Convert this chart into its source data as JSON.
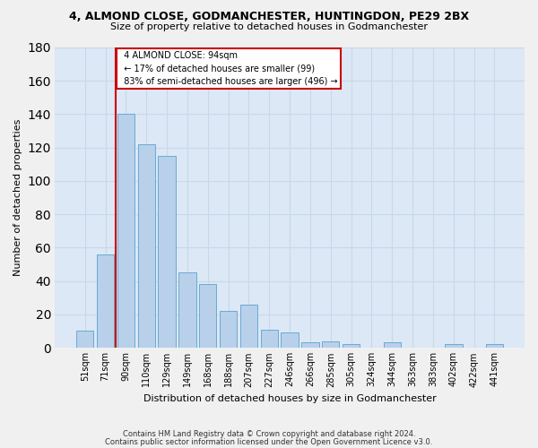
{
  "title1": "4, ALMOND CLOSE, GODMANCHESTER, HUNTINGDON, PE29 2BX",
  "title2": "Size of property relative to detached houses in Godmanchester",
  "xlabel": "Distribution of detached houses by size in Godmanchester",
  "ylabel": "Number of detached properties",
  "bar_labels": [
    "51sqm",
    "71sqm",
    "90sqm",
    "110sqm",
    "129sqm",
    "149sqm",
    "168sqm",
    "188sqm",
    "207sqm",
    "227sqm",
    "246sqm",
    "266sqm",
    "285sqm",
    "305sqm",
    "324sqm",
    "344sqm",
    "363sqm",
    "383sqm",
    "402sqm",
    "422sqm",
    "441sqm"
  ],
  "bar_values": [
    10,
    56,
    140,
    122,
    115,
    45,
    38,
    22,
    26,
    11,
    9,
    3,
    4,
    2,
    0,
    3,
    0,
    0,
    2,
    0,
    2
  ],
  "bar_color": "#b8d0ea",
  "bar_edge_color": "#6aaad4",
  "marker_label": "4 ALMOND CLOSE: 94sqm",
  "annotation_line1": "← 17% of detached houses are smaller (99)",
  "annotation_line2": "83% of semi-detached houses are larger (496) →",
  "annotation_box_color": "#ffffff",
  "annotation_box_edge": "#cc0000",
  "vline_color": "#cc0000",
  "ylim": [
    0,
    180
  ],
  "yticks": [
    0,
    20,
    40,
    60,
    80,
    100,
    120,
    140,
    160,
    180
  ],
  "grid_color": "#c8d8e8",
  "bg_color": "#dce8f5",
  "fig_bg_color": "#f0f0f0",
  "footer1": "Contains HM Land Registry data © Crown copyright and database right 2024.",
  "footer2": "Contains public sector information licensed under the Open Government Licence v3.0."
}
